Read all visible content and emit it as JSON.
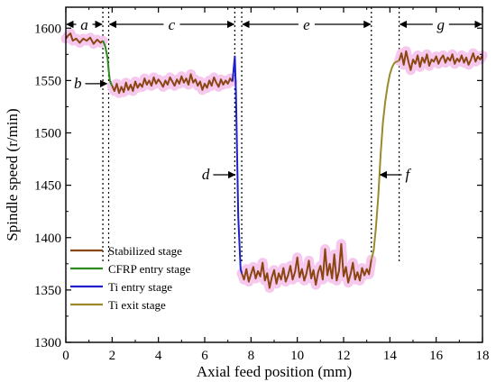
{
  "chart_data": {
    "type": "line",
    "xlabel": "Axial feed position (mm)",
    "ylabel": "Spindle speed (r/min)",
    "xlim": [
      0,
      18
    ],
    "ylim": [
      1300,
      1620
    ],
    "xticks": [
      0,
      2,
      4,
      6,
      8,
      10,
      12,
      14,
      16,
      18
    ],
    "yticks": [
      1300,
      1350,
      1400,
      1450,
      1500,
      1550,
      1600
    ],
    "grid": false,
    "legend_position": "bottom-left",
    "series": [
      {
        "name": "Stabilized stage",
        "color": "#8B4513",
        "segments": [
          [
            [
              0.0,
              1590
            ],
            [
              0.1,
              1593
            ],
            [
              0.2,
              1595
            ],
            [
              0.3,
              1588
            ],
            [
              0.45,
              1590
            ],
            [
              0.6,
              1586
            ],
            [
              0.75,
              1590
            ],
            [
              0.9,
              1588
            ],
            [
              1.05,
              1591
            ],
            [
              1.2,
              1585
            ],
            [
              1.35,
              1589
            ],
            [
              1.5,
              1586
            ],
            [
              1.6,
              1588
            ]
          ],
          [
            [
              2.0,
              1545
            ],
            [
              2.1,
              1540
            ],
            [
              2.2,
              1547
            ],
            [
              2.3,
              1538
            ],
            [
              2.4,
              1544
            ],
            [
              2.5,
              1539
            ],
            [
              2.6,
              1548
            ],
            [
              2.7,
              1541
            ],
            [
              2.8,
              1546
            ],
            [
              2.9,
              1540
            ],
            [
              3.0,
              1549
            ],
            [
              3.1,
              1543
            ],
            [
              3.2,
              1547
            ],
            [
              3.3,
              1544
            ],
            [
              3.4,
              1552
            ],
            [
              3.5,
              1546
            ],
            [
              3.6,
              1550
            ],
            [
              3.7,
              1545
            ],
            [
              3.8,
              1553
            ],
            [
              3.9,
              1547
            ],
            [
              4.0,
              1551
            ],
            [
              4.1,
              1548
            ],
            [
              4.2,
              1544
            ],
            [
              4.3,
              1550
            ],
            [
              4.4,
              1546
            ],
            [
              4.5,
              1553
            ],
            [
              4.6,
              1549
            ],
            [
              4.7,
              1545
            ],
            [
              4.8,
              1551
            ],
            [
              4.9,
              1547
            ],
            [
              5.0,
              1554
            ],
            [
              5.1,
              1548
            ],
            [
              5.2,
              1552
            ],
            [
              5.3,
              1546
            ],
            [
              5.4,
              1556
            ],
            [
              5.5,
              1548
            ],
            [
              5.6,
              1551
            ],
            [
              5.7,
              1545
            ],
            [
              5.8,
              1549
            ],
            [
              5.9,
              1541
            ],
            [
              6.0,
              1547
            ],
            [
              6.1,
              1543
            ],
            [
              6.2,
              1550
            ],
            [
              6.3,
              1545
            ],
            [
              6.4,
              1553
            ],
            [
              6.5,
              1548
            ],
            [
              6.6,
              1544
            ],
            [
              6.7,
              1551
            ],
            [
              6.8,
              1546
            ],
            [
              6.9,
              1550
            ],
            [
              7.0,
              1547
            ],
            [
              7.1,
              1552
            ],
            [
              7.2,
              1549
            ]
          ],
          [
            [
              7.6,
              1366
            ],
            [
              7.7,
              1360
            ],
            [
              7.8,
              1370
            ],
            [
              7.9,
              1358
            ],
            [
              8.0,
              1365
            ],
            [
              8.1,
              1372
            ],
            [
              8.2,
              1361
            ],
            [
              8.3,
              1368
            ],
            [
              8.4,
              1363
            ],
            [
              8.5,
              1376
            ],
            [
              8.6,
              1359
            ],
            [
              8.7,
              1366
            ],
            [
              8.8,
              1352
            ],
            [
              8.9,
              1362
            ],
            [
              9.0,
              1369
            ],
            [
              9.1,
              1356
            ],
            [
              9.2,
              1366
            ],
            [
              9.3,
              1360
            ],
            [
              9.4,
              1371
            ],
            [
              9.5,
              1358
            ],
            [
              9.6,
              1364
            ],
            [
              9.7,
              1373
            ],
            [
              9.8,
              1360
            ],
            [
              9.9,
              1367
            ],
            [
              10.0,
              1381
            ],
            [
              10.1,
              1362
            ],
            [
              10.2,
              1370
            ],
            [
              10.3,
              1359
            ],
            [
              10.4,
              1366
            ],
            [
              10.5,
              1378
            ],
            [
              10.6,
              1361
            ],
            [
              10.7,
              1369
            ],
            [
              10.8,
              1355
            ],
            [
              10.9,
              1367
            ],
            [
              11.0,
              1373
            ],
            [
              11.1,
              1360
            ],
            [
              11.2,
              1389
            ],
            [
              11.3,
              1364
            ],
            [
              11.4,
              1375
            ],
            [
              11.5,
              1361
            ],
            [
              11.6,
              1384
            ],
            [
              11.7,
              1359
            ],
            [
              11.8,
              1368
            ],
            [
              11.9,
              1394
            ],
            [
              12.0,
              1363
            ],
            [
              12.1,
              1372
            ],
            [
              12.2,
              1357
            ],
            [
              12.3,
              1365
            ],
            [
              12.4,
              1376
            ],
            [
              12.5,
              1360
            ],
            [
              12.6,
              1367
            ],
            [
              12.7,
              1359
            ],
            [
              12.8,
              1371
            ],
            [
              12.9,
              1364
            ],
            [
              13.0,
              1370
            ],
            [
              13.1,
              1365
            ],
            [
              13.2,
              1379
            ]
          ],
          [
            [
              14.4,
              1569
            ],
            [
              14.5,
              1576
            ],
            [
              14.6,
              1565
            ],
            [
              14.7,
              1578
            ],
            [
              14.8,
              1568
            ],
            [
              14.9,
              1560
            ],
            [
              15.0,
              1570
            ],
            [
              15.1,
              1566
            ],
            [
              15.2,
              1574
            ],
            [
              15.3,
              1563
            ],
            [
              15.4,
              1572
            ],
            [
              15.5,
              1567
            ],
            [
              15.6,
              1575
            ],
            [
              15.7,
              1564
            ],
            [
              15.8,
              1570
            ],
            [
              15.9,
              1568
            ],
            [
              16.0,
              1573
            ],
            [
              16.1,
              1566
            ],
            [
              16.2,
              1571
            ],
            [
              16.3,
              1574
            ],
            [
              16.4,
              1567
            ],
            [
              16.5,
              1572
            ],
            [
              16.6,
              1569
            ],
            [
              16.7,
              1575
            ],
            [
              16.8,
              1566
            ],
            [
              16.9,
              1571
            ],
            [
              17.0,
              1568
            ],
            [
              17.1,
              1574
            ],
            [
              17.2,
              1567
            ],
            [
              17.3,
              1572
            ],
            [
              17.4,
              1565
            ],
            [
              17.5,
              1570
            ],
            [
              17.6,
              1576
            ],
            [
              17.7,
              1568
            ],
            [
              17.8,
              1573
            ],
            [
              17.9,
              1570
            ],
            [
              18.0,
              1574
            ]
          ]
        ]
      },
      {
        "name": "CFRP entry stage",
        "color": "#2E8B1E",
        "segments": [
          [
            [
              1.6,
              1588
            ],
            [
              1.7,
              1583
            ],
            [
              1.8,
              1572
            ],
            [
              1.85,
              1560
            ],
            [
              1.9,
              1550
            ],
            [
              1.95,
              1547
            ],
            [
              2.0,
              1545
            ]
          ]
        ]
      },
      {
        "name": "Ti entry stage",
        "color": "#1F1FCC",
        "segments": [
          [
            [
              7.2,
              1549
            ],
            [
              7.3,
              1573
            ],
            [
              7.35,
              1540
            ],
            [
              7.4,
              1480
            ],
            [
              7.45,
              1420
            ],
            [
              7.5,
              1395
            ],
            [
              7.55,
              1370
            ],
            [
              7.6,
              1366
            ]
          ]
        ]
      },
      {
        "name": "Ti exit stage",
        "color": "#9A8A2A",
        "segments": [
          [
            [
              13.2,
              1379
            ],
            [
              13.3,
              1388
            ],
            [
              13.4,
              1410
            ],
            [
              13.5,
              1440
            ],
            [
              13.6,
              1480
            ],
            [
              13.7,
              1510
            ],
            [
              13.8,
              1530
            ],
            [
              13.9,
              1545
            ],
            [
              14.0,
              1556
            ],
            [
              14.1,
              1563
            ],
            [
              14.2,
              1567
            ],
            [
              14.3,
              1568
            ],
            [
              14.4,
              1569
            ]
          ]
        ]
      }
    ],
    "stage_boundaries": [
      1.6,
      1.85,
      7.3,
      7.6,
      13.2,
      14.4
    ],
    "stage_spans": [
      {
        "label": "a",
        "from": 0,
        "to": 1.6
      },
      {
        "label": "c",
        "from": 1.85,
        "to": 7.3
      },
      {
        "label": "e",
        "from": 7.6,
        "to": 13.2
      },
      {
        "label": "g",
        "from": 14.4,
        "to": 18
      }
    ],
    "point_annotations": [
      {
        "label": "b",
        "x": 1.85,
        "y": 1547,
        "side": "left"
      },
      {
        "label": "d",
        "x": 7.38,
        "y": 1460,
        "side": "left"
      },
      {
        "label": "f",
        "x": 13.5,
        "y": 1460,
        "side": "right"
      }
    ]
  }
}
